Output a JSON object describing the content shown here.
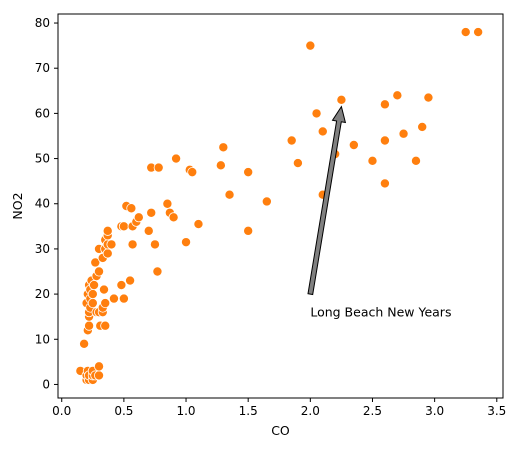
{
  "chart_data": {
    "type": "scatter",
    "title": "",
    "xlabel": "CO",
    "ylabel": "NO2",
    "xlim": [
      -0.03,
      3.55
    ],
    "ylim": [
      -3,
      82
    ],
    "xticks": [
      0.0,
      0.5,
      1.0,
      1.5,
      2.0,
      2.5,
      3.0,
      3.5
    ],
    "xtick_labels": [
      "0.0",
      "0.5",
      "1.0",
      "1.5",
      "2.0",
      "2.5",
      "3.0",
      "3.5"
    ],
    "yticks": [
      0,
      10,
      20,
      30,
      40,
      50,
      60,
      70,
      80
    ],
    "ytick_labels": [
      "0",
      "10",
      "20",
      "30",
      "40",
      "50",
      "60",
      "70",
      "80"
    ],
    "grid": false,
    "marker_color": "#ff7f0e",
    "points": [
      [
        0.15,
        3
      ],
      [
        0.18,
        9
      ],
      [
        0.2,
        1
      ],
      [
        0.2,
        2
      ],
      [
        0.21,
        3
      ],
      [
        0.22,
        1
      ],
      [
        0.22,
        2
      ],
      [
        0.25,
        1
      ],
      [
        0.25,
        2
      ],
      [
        0.25,
        3
      ],
      [
        0.27,
        2
      ],
      [
        0.3,
        2
      ],
      [
        0.3,
        4
      ],
      [
        0.2,
        18
      ],
      [
        0.21,
        12
      ],
      [
        0.21,
        20
      ],
      [
        0.22,
        13
      ],
      [
        0.22,
        15
      ],
      [
        0.22,
        16
      ],
      [
        0.22,
        22
      ],
      [
        0.23,
        17
      ],
      [
        0.23,
        19
      ],
      [
        0.23,
        21
      ],
      [
        0.24,
        23
      ],
      [
        0.25,
        18
      ],
      [
        0.25,
        20
      ],
      [
        0.26,
        22
      ],
      [
        0.27,
        27
      ],
      [
        0.28,
        16
      ],
      [
        0.28,
        24
      ],
      [
        0.3,
        16
      ],
      [
        0.3,
        25
      ],
      [
        0.3,
        30
      ],
      [
        0.31,
        13
      ],
      [
        0.33,
        16
      ],
      [
        0.33,
        17
      ],
      [
        0.33,
        28
      ],
      [
        0.34,
        21
      ],
      [
        0.35,
        13
      ],
      [
        0.35,
        18
      ],
      [
        0.35,
        30
      ],
      [
        0.35,
        32
      ],
      [
        0.37,
        29
      ],
      [
        0.37,
        31
      ],
      [
        0.37,
        33
      ],
      [
        0.37,
        34
      ],
      [
        0.4,
        31
      ],
      [
        0.42,
        19
      ],
      [
        0.48,
        22
      ],
      [
        0.48,
        35
      ],
      [
        0.5,
        19
      ],
      [
        0.5,
        35
      ],
      [
        0.52,
        39.5
      ],
      [
        0.55,
        23
      ],
      [
        0.56,
        39
      ],
      [
        0.57,
        31
      ],
      [
        0.57,
        35
      ],
      [
        0.6,
        36
      ],
      [
        0.62,
        37
      ],
      [
        0.7,
        34
      ],
      [
        0.72,
        38
      ],
      [
        0.72,
        48
      ],
      [
        0.75,
        31
      ],
      [
        0.77,
        25
      ],
      [
        0.78,
        48
      ],
      [
        0.85,
        40
      ],
      [
        0.87,
        38
      ],
      [
        0.9,
        37
      ],
      [
        0.92,
        50
      ],
      [
        1.0,
        31.5
      ],
      [
        1.03,
        47.5
      ],
      [
        1.05,
        47
      ],
      [
        1.1,
        35.5
      ],
      [
        1.28,
        48.5
      ],
      [
        1.3,
        52.5
      ],
      [
        1.35,
        42
      ],
      [
        1.5,
        34
      ],
      [
        1.5,
        47
      ],
      [
        1.65,
        40.5
      ],
      [
        1.85,
        54
      ],
      [
        1.9,
        49
      ],
      [
        2.0,
        75
      ],
      [
        2.05,
        60
      ],
      [
        2.1,
        42
      ],
      [
        2.1,
        56
      ],
      [
        2.2,
        51
      ],
      [
        2.25,
        63
      ],
      [
        2.35,
        53
      ],
      [
        2.5,
        49.5
      ],
      [
        2.6,
        44.5
      ],
      [
        2.6,
        54
      ],
      [
        2.6,
        62
      ],
      [
        2.7,
        64
      ],
      [
        2.75,
        55.5
      ],
      [
        2.85,
        49.5
      ],
      [
        2.9,
        57
      ],
      [
        2.95,
        63.5
      ],
      [
        3.25,
        78
      ],
      [
        3.35,
        78
      ]
    ],
    "annotation": {
      "text": "Long Beach New Years",
      "text_at": [
        2.0,
        15
      ],
      "arrow_tail": [
        2.0,
        20
      ],
      "arrow_head": [
        2.25,
        61.5
      ]
    }
  }
}
